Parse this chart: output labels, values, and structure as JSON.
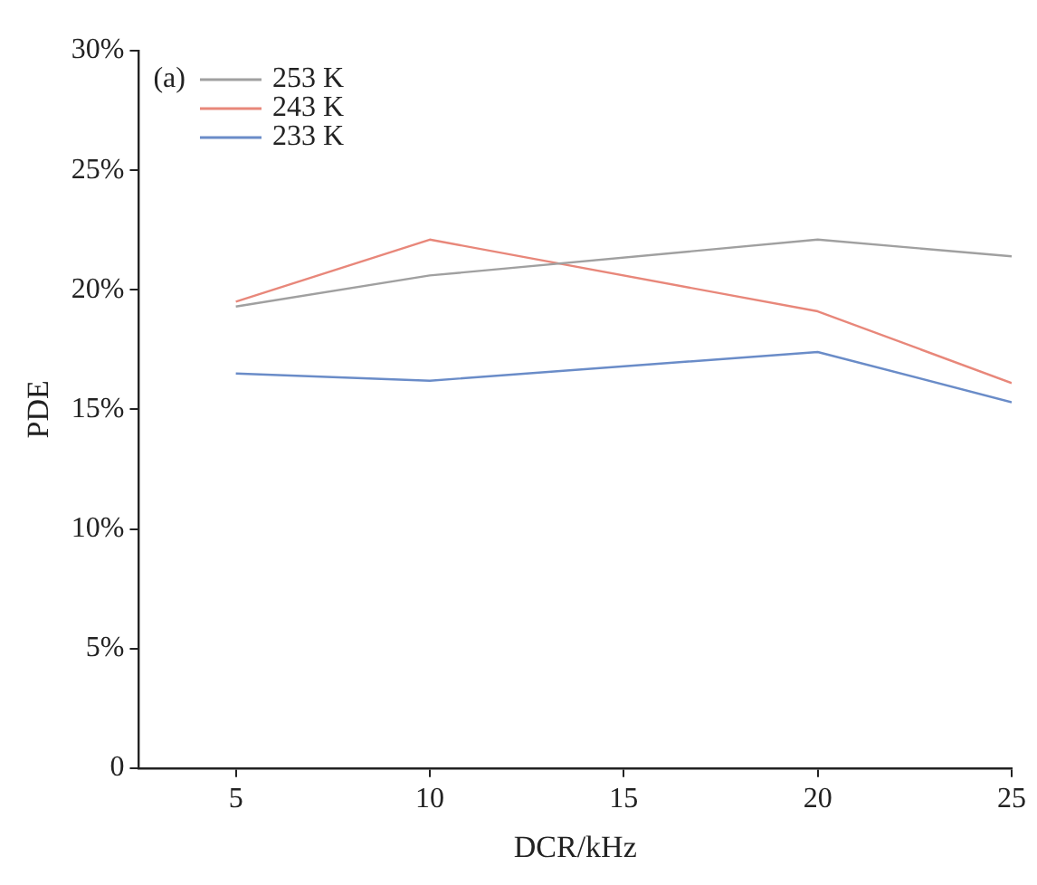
{
  "chart_data": {
    "type": "line",
    "xlabel": "DCR/kHz",
    "ylabel": "PDE",
    "annotations": [
      "(a)"
    ],
    "x": [
      5,
      10,
      20,
      25
    ],
    "series": [
      {
        "name": "253 K",
        "color": "#a0a0a0",
        "values": [
          19.3,
          20.6,
          22.1,
          21.4
        ]
      },
      {
        "name": "243 K",
        "color": "#e8877a",
        "values": [
          19.5,
          22.1,
          19.1,
          16.1
        ]
      },
      {
        "name": "233 K",
        "color": "#6a8cc8",
        "values": [
          16.5,
          16.2,
          17.4,
          15.3
        ]
      }
    ],
    "xlim": [
      2.5,
      25
    ],
    "xticks": [
      5,
      10,
      15,
      20,
      25
    ],
    "ylim": [
      0,
      30
    ],
    "yticks": [
      {
        "value": 0,
        "label": "0"
      },
      {
        "value": 5,
        "label": "5%"
      },
      {
        "value": 10,
        "label": "10%"
      },
      {
        "value": 15,
        "label": "15%"
      },
      {
        "value": 20,
        "label": "20%"
      },
      {
        "value": 25,
        "label": "25%"
      },
      {
        "value": 30,
        "label": "30%"
      }
    ],
    "grid": false,
    "legend": "top left",
    "marker": "none",
    "line_style": "solid"
  }
}
